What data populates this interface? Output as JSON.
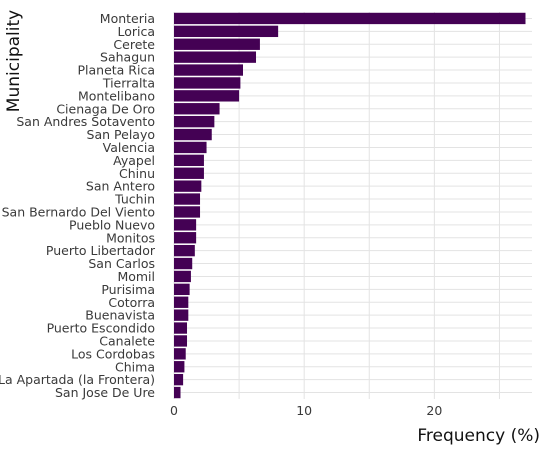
{
  "chart_data": {
    "type": "bar",
    "orientation": "horizontal",
    "xlabel": "Frequency (%)",
    "ylabel": "Municipality",
    "xlim": [
      0,
      27.5
    ],
    "xticks": [
      0,
      10,
      20
    ],
    "grid": true,
    "bar_color": "#440154",
    "categories": [
      "Monteria",
      "Lorica",
      "Cerete",
      "Sahagun",
      "Planeta Rica",
      "Tierralta",
      "Montelibano",
      "Cienaga De Oro",
      "San Andres Sotavento",
      "San Pelayo",
      "Valencia",
      "Ayapel",
      "Chinu",
      "San Antero",
      "Tuchin",
      "San Bernardo Del Viento",
      "Pueblo Nuevo",
      "Monitos",
      "Puerto Libertador",
      "San Carlos",
      "Momil",
      "Purisima",
      "Cotorra",
      "Buenavista",
      "Puerto Escondido",
      "Canalete",
      "Los Cordobas",
      "Chima",
      "La Apartada (la Frontera)",
      "San Jose De Ure"
    ],
    "values": [
      27.0,
      8.0,
      6.6,
      6.3,
      5.3,
      5.1,
      5.0,
      3.5,
      3.1,
      2.9,
      2.5,
      2.3,
      2.3,
      2.1,
      2.0,
      2.0,
      1.7,
      1.7,
      1.6,
      1.4,
      1.3,
      1.2,
      1.1,
      1.1,
      1.0,
      1.0,
      0.9,
      0.8,
      0.7,
      0.5
    ]
  }
}
